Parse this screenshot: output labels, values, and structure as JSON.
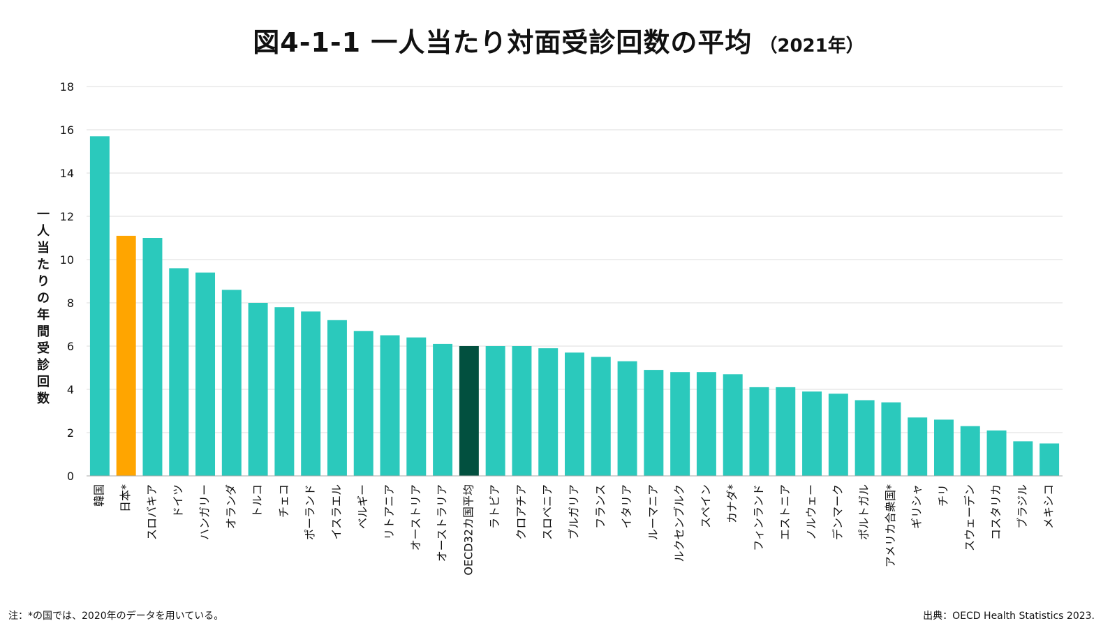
{
  "title": "図4-1-1 一人当たり対面受診回数の平均",
  "subtitle": "（2021年）",
  "note": "注：*の国では、2020年のデータを用いている。",
  "source": "出典：OECD Health Statistics 2023.",
  "colors": {
    "bar": "#2bc9bc",
    "japan": "#ffa500",
    "oecd": "#02503f",
    "grid": "#dddddd",
    "axis": "#aaaaaa",
    "text": "#111111"
  },
  "chart_data": {
    "type": "bar",
    "title": "図4-1-1 一人当たり対面受診回数の平均",
    "subtitle": "（2021年）",
    "ylabel": "一人当たりの年間受診回数",
    "xlabel": "",
    "ylim": [
      0,
      18
    ],
    "yticks": [
      0,
      2,
      4,
      6,
      8,
      10,
      12,
      14,
      16,
      18
    ],
    "grid": true,
    "categories": [
      "韓国",
      "日本*",
      "スロバキア",
      "ドイツ",
      "ハンガリー",
      "オランダ",
      "トルコ",
      "チェコ",
      "ポーランド",
      "イスラエル",
      "ベルギー",
      "リトアニア",
      "オーストリア",
      "オーストラリア",
      "OECD32カ国平均",
      "ラトビア",
      "クロアチア",
      "スロベニア",
      "ブルガリア",
      "フランス",
      "イタリア",
      "ルーマニア",
      "ルクセンブルク",
      "スペイン",
      "カナダ*",
      "フィンランド",
      "エストニア",
      "ノルウェー",
      "デンマーク",
      "ポルトガル",
      "アメリカ合衆国*",
      "ギリシャ",
      "チリ",
      "スウェーデン",
      "コスタリカ",
      "ブラジル",
      "メキシコ"
    ],
    "values": [
      15.7,
      11.1,
      11.0,
      9.6,
      9.4,
      8.6,
      8.0,
      7.8,
      7.6,
      7.2,
      6.7,
      6.5,
      6.4,
      6.1,
      6.0,
      6.0,
      6.0,
      5.9,
      5.7,
      5.5,
      5.3,
      4.9,
      4.8,
      4.8,
      4.7,
      4.1,
      4.1,
      3.9,
      3.8,
      3.5,
      3.4,
      2.7,
      2.6,
      2.3,
      2.1,
      1.6,
      1.5
    ],
    "highlight": {
      "日本*": "japan",
      "OECD32カ国平均": "oecd"
    }
  }
}
